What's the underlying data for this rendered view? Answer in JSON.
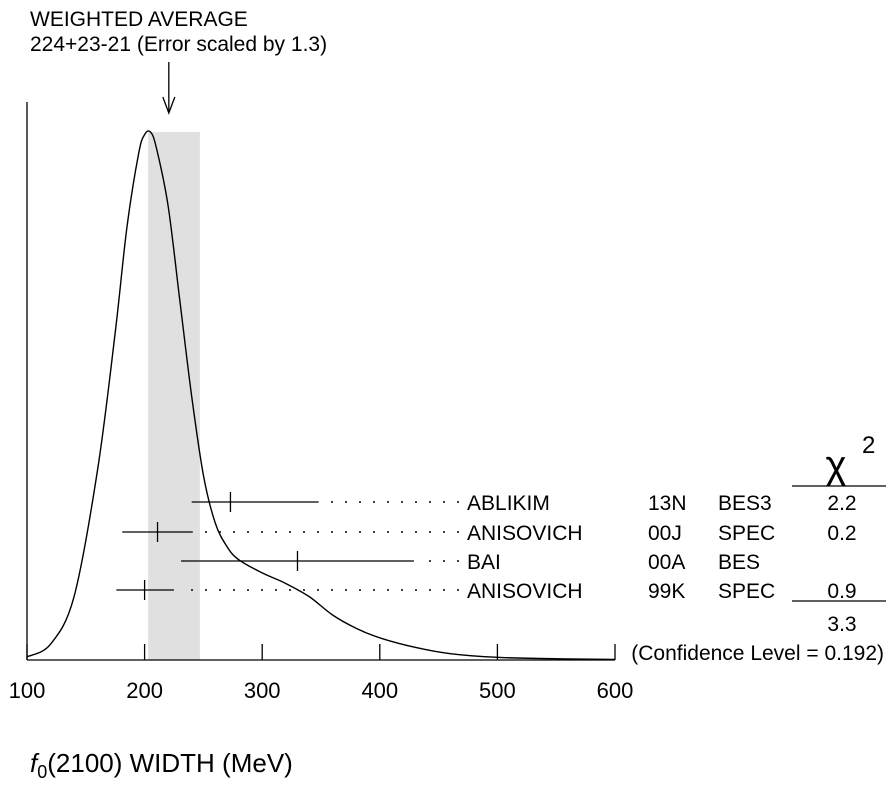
{
  "header": {
    "line1": "WEIGHTED AVERAGE",
    "line2": "224+23-21 (Error scaled by 1.3)"
  },
  "chart_data": {
    "type": "ideogram",
    "xlabel": {
      "symbol": "f",
      "subscript": "0",
      "rest": "(2100) WIDTH (MeV)"
    },
    "xlim": [
      100,
      600
    ],
    "x_ticks": [
      100,
      200,
      300,
      400,
      500,
      600
    ],
    "weighted_average": {
      "value": 224,
      "err_plus": 23,
      "err_minus": 21,
      "scale_factor": 1.3
    },
    "band": [
      203,
      247
    ],
    "measurements": [
      {
        "author": "ABLIKIM",
        "ref": "13N",
        "tech": "BES3",
        "value": 273,
        "low": 240,
        "high": 348,
        "chi2": "2.2"
      },
      {
        "author": "ANISOVICH",
        "ref": "00J",
        "tech": "SPEC",
        "value": 211,
        "low": 181,
        "high": 241,
        "chi2": "0.2"
      },
      {
        "author": "BAI",
        "ref": "00A",
        "tech": "BES",
        "value": 330,
        "low": 231,
        "high": 429,
        "chi2": ""
      },
      {
        "author": "ANISOVICH",
        "ref": "99K",
        "tech": "SPEC",
        "value": 200,
        "low": 176,
        "high": 225,
        "chi2": "0.9"
      }
    ],
    "chi2_header": "χ",
    "chi2_power": "2",
    "chi2_total": "3.3",
    "confidence_level": "(Confidence Level = 0.192)",
    "ideogram_curve": [
      [
        100,
        0.006
      ],
      [
        120,
        0.03
      ],
      [
        140,
        0.12
      ],
      [
        160,
        0.36
      ],
      [
        175,
        0.62
      ],
      [
        185,
        0.82
      ],
      [
        195,
        0.96
      ],
      [
        200,
        0.995
      ],
      [
        205,
        1.0
      ],
      [
        210,
        0.97
      ],
      [
        220,
        0.86
      ],
      [
        230,
        0.68
      ],
      [
        240,
        0.5
      ],
      [
        250,
        0.35
      ],
      [
        260,
        0.26
      ],
      [
        270,
        0.215
      ],
      [
        280,
        0.19
      ],
      [
        300,
        0.165
      ],
      [
        320,
        0.145
      ],
      [
        340,
        0.12
      ],
      [
        360,
        0.085
      ],
      [
        380,
        0.06
      ],
      [
        400,
        0.042
      ],
      [
        430,
        0.024
      ],
      [
        460,
        0.012
      ],
      [
        500,
        0.005
      ],
      [
        560,
        0.002
      ],
      [
        600,
        0.001
      ]
    ]
  }
}
